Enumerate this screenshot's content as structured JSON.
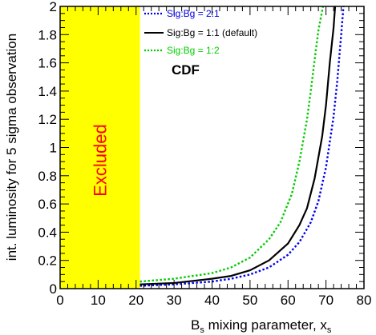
{
  "chart_data": {
    "type": "line",
    "title": "",
    "experiment_label": "CDF",
    "xlabel_main": "B",
    "xlabel_sub": "s",
    "xlabel_rest": " mixing parameter, x",
    "xlabel_sub2": "s",
    "ylabel": "int. luminosity for 5 sigma observation",
    "xlim": [
      0,
      80
    ],
    "ylim": [
      0,
      2
    ],
    "x_ticks": [
      0,
      10,
      20,
      30,
      40,
      50,
      60,
      70,
      80
    ],
    "y_ticks": [
      0,
      0.2,
      0.4,
      0.6,
      0.8,
      1,
      1.2,
      1.4,
      1.6,
      1.8,
      2
    ],
    "x_tick_labels": [
      "0",
      "10",
      "20",
      "30",
      "40",
      "50",
      "60",
      "70",
      "80"
    ],
    "y_tick_labels": [
      "0",
      "0.2",
      "0.4",
      "0.6",
      "0.8",
      "1",
      "1.2",
      "1.4",
      "1.6",
      "1.8",
      "2"
    ],
    "grid": false,
    "legend_position": "top-center",
    "excluded_region": {
      "x_range": [
        0,
        21
      ],
      "color": "#ffff00",
      "label": "Excluded",
      "label_color": "#ff0000"
    },
    "series": [
      {
        "name": "Sig:Bg = 2:1",
        "color": "#0000ee",
        "style": "dotted",
        "x": [
          21,
          30,
          40,
          45,
          50,
          55,
          60,
          63,
          66,
          68,
          70,
          72,
          73,
          74,
          74.6
        ],
        "y": [
          0.02,
          0.03,
          0.05,
          0.07,
          0.1,
          0.15,
          0.24,
          0.33,
          0.47,
          0.62,
          0.86,
          1.22,
          1.48,
          1.8,
          2.0
        ]
      },
      {
        "name": "Sig:Bg = 1:1 (default)",
        "color": "#000000",
        "style": "solid",
        "x": [
          21,
          30,
          40,
          45,
          50,
          55,
          60,
          63,
          65,
          67,
          69,
          70,
          71,
          72,
          72.4
        ],
        "y": [
          0.03,
          0.04,
          0.07,
          0.09,
          0.13,
          0.2,
          0.32,
          0.45,
          0.57,
          0.78,
          1.08,
          1.3,
          1.6,
          1.85,
          2.0
        ]
      },
      {
        "name": "Sig:Bg = 1:2",
        "color": "#00cc00",
        "style": "dotted",
        "x": [
          21,
          30,
          40,
          45,
          50,
          55,
          58,
          61,
          63,
          65,
          66,
          67,
          68,
          69,
          69.2
        ],
        "y": [
          0.05,
          0.07,
          0.11,
          0.15,
          0.22,
          0.35,
          0.47,
          0.67,
          0.9,
          1.2,
          1.4,
          1.62,
          1.83,
          1.97,
          2.0
        ]
      }
    ]
  }
}
